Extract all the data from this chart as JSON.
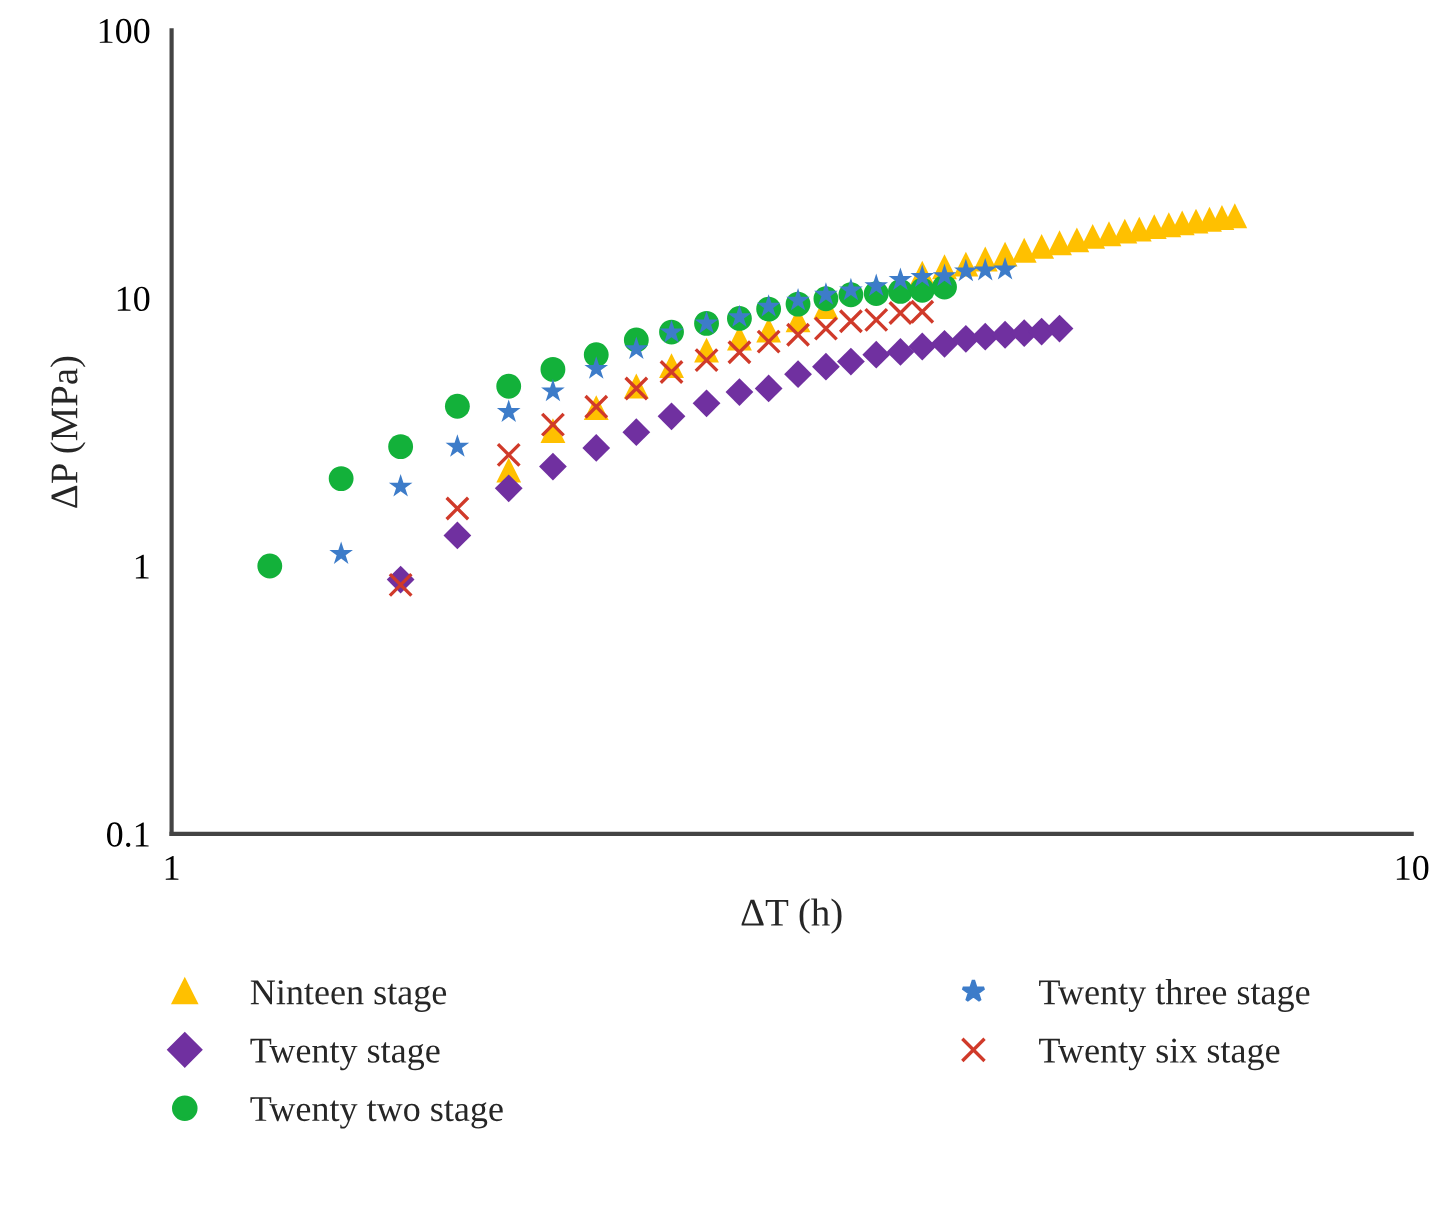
{
  "chart_data": {
    "type": "scatter",
    "xlabel": "ΔT (h)",
    "ylabel": "ΔP (MPa)",
    "log": "xy",
    "xlim": [
      1,
      10
    ],
    "ylim": [
      0.1,
      100
    ],
    "xticks": [
      1,
      10
    ],
    "yticks": [
      0.1,
      1,
      10,
      100
    ],
    "grid": false,
    "legend": "bottom",
    "series": [
      {
        "name": "Ninteen stage",
        "color": "#ffc000",
        "marker": "triangle",
        "x": [
          1.87,
          2.03,
          2.2,
          2.37,
          2.53,
          2.7,
          2.87,
          3.03,
          3.2,
          3.37,
          3.53,
          3.7,
          3.87,
          4.03,
          4.2,
          4.37,
          4.53,
          4.7,
          4.87,
          5.03,
          5.2,
          5.37,
          5.53,
          5.7,
          5.87,
          6.03,
          6.2,
          6.37,
          6.53,
          6.7,
          6.87,
          7.03,
          7.2
        ],
        "values": [
          2.28,
          3.2,
          3.9,
          4.7,
          5.6,
          6.4,
          7.1,
          7.6,
          8.3,
          9.3,
          null,
          null,
          null,
          12.4,
          13.1,
          13.4,
          14.0,
          14.6,
          15.1,
          15.6,
          16.1,
          16.5,
          17.0,
          17.4,
          17.8,
          18.1,
          18.5,
          18.8,
          19.1,
          19.4,
          19.7,
          20.0,
          20.3
        ]
      },
      {
        "name": "Twenty stage",
        "color": "#7030a0",
        "marker": "diamond",
        "x": [
          1.53,
          1.7,
          1.87,
          2.03,
          2.2,
          2.37,
          2.53,
          2.7,
          2.87,
          3.03,
          3.2,
          3.37,
          3.53,
          3.7,
          3.87,
          4.03,
          4.2,
          4.37,
          4.53,
          4.7,
          4.87,
          5.03,
          5.2
        ],
        "values": [
          0.89,
          1.3,
          1.95,
          2.35,
          2.76,
          3.16,
          3.62,
          4.05,
          4.46,
          4.6,
          5.2,
          5.55,
          5.8,
          6.15,
          6.3,
          6.6,
          6.75,
          7.05,
          7.18,
          7.3,
          7.4,
          7.5,
          7.7
        ]
      },
      {
        "name": "Twenty two stage",
        "color": "#13b13a",
        "marker": "circle",
        "x": [
          1.2,
          1.37,
          1.53,
          1.7,
          1.87,
          2.03,
          2.2,
          2.37,
          2.53,
          2.7,
          2.87,
          3.03,
          3.2,
          3.37,
          3.53,
          3.7,
          3.87,
          4.03,
          4.2
        ],
        "values": [
          1.0,
          2.12,
          2.79,
          3.95,
          4.69,
          5.42,
          6.15,
          6.98,
          7.47,
          8.05,
          8.4,
          9.1,
          9.5,
          9.95,
          10.3,
          10.4,
          10.6,
          10.7,
          11.0
        ]
      },
      {
        "name": "Twenty three stage",
        "color": "#3d7cc9",
        "marker": "star",
        "x": [
          1.37,
          1.53,
          1.7,
          1.87,
          2.03,
          2.2,
          2.37,
          2.53,
          2.7,
          2.87,
          3.03,
          3.2,
          3.37,
          3.53,
          3.7,
          3.87,
          4.03,
          4.2,
          4.37,
          4.53,
          4.7
        ],
        "values": [
          1.11,
          1.98,
          2.79,
          3.76,
          4.49,
          5.45,
          6.46,
          7.45,
          8.05,
          8.5,
          9.3,
          9.8,
          10.3,
          10.7,
          11.1,
          11.7,
          12.0,
          12.1,
          12.6,
          12.7,
          12.8
        ]
      },
      {
        "name": "Twenty six stage",
        "color": "#d03a2a",
        "marker": "cross",
        "x": [
          1.53,
          1.7,
          1.87,
          2.03,
          2.2,
          2.37,
          2.53,
          2.7,
          2.87,
          3.03,
          3.2,
          3.37,
          3.53,
          3.7,
          3.87,
          4.03
        ],
        "values": [
          0.85,
          1.64,
          2.6,
          3.37,
          3.93,
          4.6,
          5.3,
          5.87,
          6.28,
          6.88,
          7.3,
          7.7,
          8.2,
          8.3,
          8.8,
          8.9
        ]
      }
    ]
  }
}
